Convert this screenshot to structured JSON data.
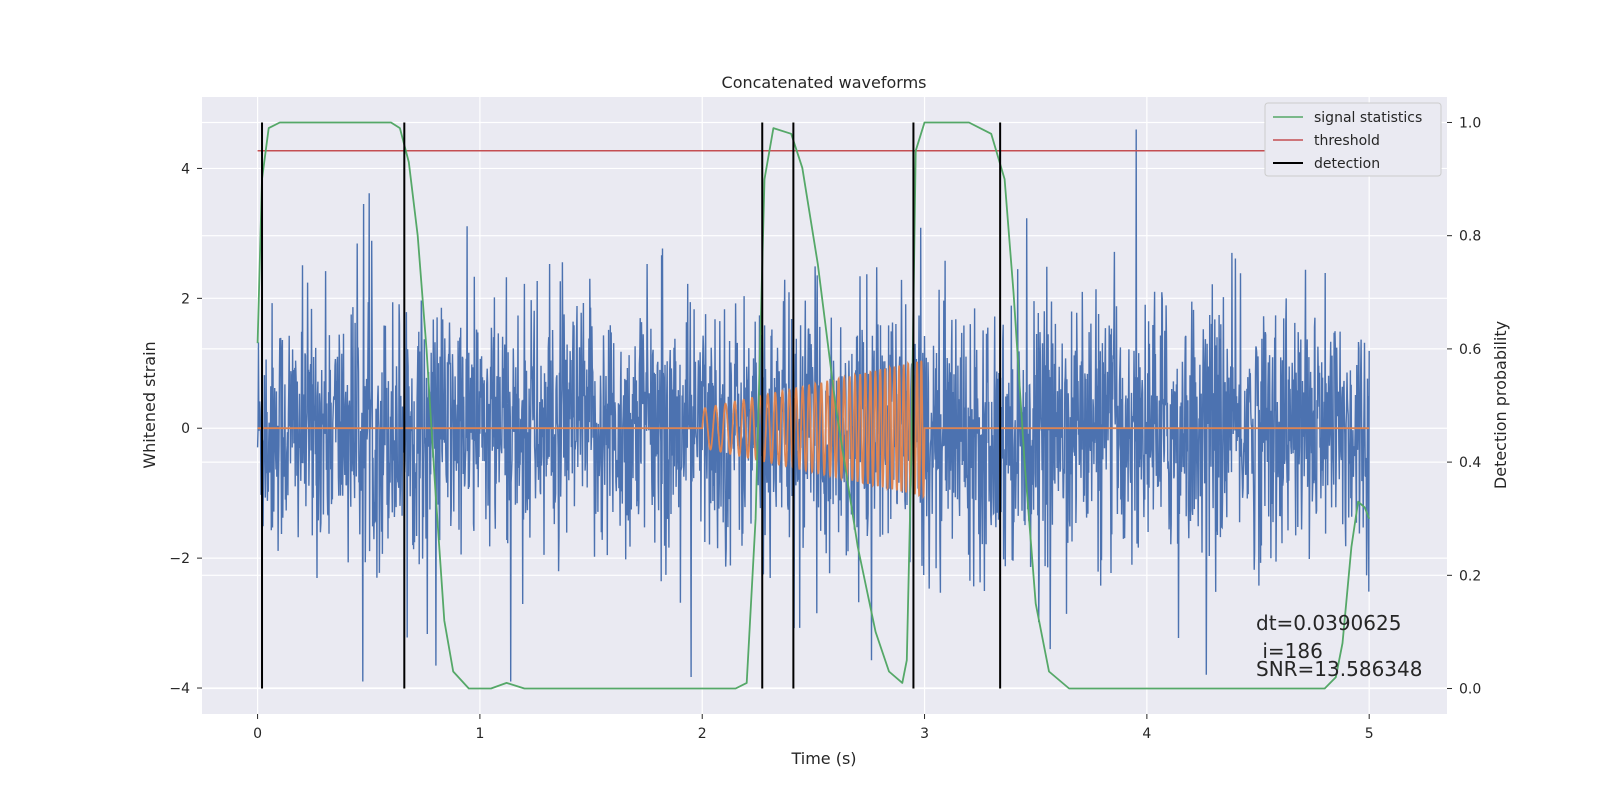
{
  "chart_data": {
    "type": "line",
    "title": "Concatenated waveforms",
    "xlabel": "Time (s)",
    "ylabel": "Whitened strain",
    "y2label": "Detection probability",
    "xlim": [
      -0.25,
      5.35
    ],
    "ylim": [
      -4.4,
      5.1
    ],
    "y2lim": [
      -0.045,
      1.045
    ],
    "x_ticks": [
      0,
      1,
      2,
      3,
      4,
      5
    ],
    "y_ticks": [
      -4,
      -2,
      0,
      2,
      4
    ],
    "y2_ticks": [
      0.0,
      0.2,
      0.4,
      0.6,
      0.8,
      1.0
    ],
    "x_tick_labels": [
      "0",
      "1",
      "2",
      "3",
      "4",
      "5"
    ],
    "y_tick_labels": [
      "−4",
      "−2",
      "0",
      "2",
      "4"
    ],
    "y2_tick_labels": [
      "0.0",
      "0.2",
      "0.4",
      "0.6",
      "0.8",
      "1.0"
    ],
    "grid": true,
    "legend_position": "top-right",
    "colors": {
      "noise": "#4c72b0",
      "template": "#dd8452",
      "signal_statistics": "#55a868",
      "threshold": "#c44e52",
      "detection": "#000000",
      "background": "#eaeaf2"
    },
    "legend": [
      {
        "label": "signal statistics",
        "color": "#55a868"
      },
      {
        "label": "threshold",
        "color": "#c44e52"
      },
      {
        "label": "detection",
        "color": "#000000"
      }
    ],
    "noise": {
      "x_range": [
        0,
        5
      ],
      "amplitude_typical": 1.0,
      "spike_max": 4.6
    },
    "template": {
      "start": 2.0,
      "end": 3.0,
      "amplitude_start": 0.3,
      "amplitude_end": 1.05,
      "cycles": 36
    },
    "signal_statistics": {
      "x": [
        0.0,
        0.02,
        0.05,
        0.1,
        0.2,
        0.5,
        0.6,
        0.64,
        0.68,
        0.72,
        0.76,
        0.8,
        0.84,
        0.88,
        0.95,
        1.05,
        1.12,
        1.2,
        1.4,
        2.0,
        2.15,
        2.2,
        2.24,
        2.28,
        2.32,
        2.4,
        2.45,
        2.52,
        2.6,
        2.7,
        2.78,
        2.84,
        2.9,
        2.92,
        2.94,
        2.96,
        3.0,
        3.2,
        3.3,
        3.36,
        3.4,
        3.45,
        3.5,
        3.56,
        3.65,
        4.0,
        4.5,
        4.8,
        4.85,
        4.88,
        4.92,
        4.95,
        4.98,
        5.0
      ],
      "values": [
        0.61,
        0.9,
        0.99,
        1.0,
        1.0,
        1.0,
        1.0,
        0.99,
        0.93,
        0.8,
        0.6,
        0.35,
        0.12,
        0.03,
        0.0,
        0.0,
        0.01,
        0.0,
        0.0,
        0.0,
        0.0,
        0.01,
        0.3,
        0.9,
        0.99,
        0.98,
        0.92,
        0.75,
        0.5,
        0.25,
        0.1,
        0.03,
        0.01,
        0.05,
        0.4,
        0.95,
        1.0,
        1.0,
        0.98,
        0.9,
        0.7,
        0.4,
        0.15,
        0.03,
        0.0,
        0.0,
        0.0,
        0.0,
        0.02,
        0.08,
        0.25,
        0.33,
        0.32,
        0.3
      ]
    },
    "threshold": 0.95,
    "detections": [
      0.02,
      0.66,
      2.27,
      2.41,
      2.95,
      3.34
    ],
    "annotation": {
      "line1": "dt=0.0390625",
      "line2": " i=186",
      "line3": "SNR=13.586348"
    }
  }
}
